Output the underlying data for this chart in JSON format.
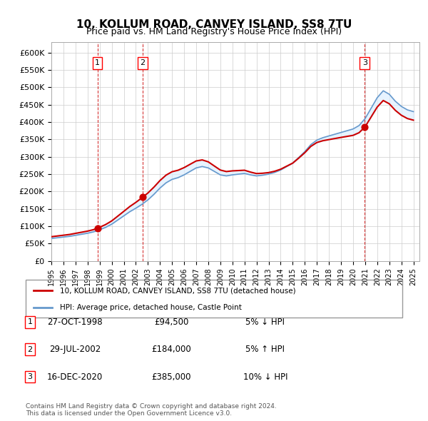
{
  "title": "10, KOLLUM ROAD, CANVEY ISLAND, SS8 7TU",
  "subtitle": "Price paid vs. HM Land Registry's House Price Index (HPI)",
  "ylabel_ticks": [
    "£0",
    "£50K",
    "£100K",
    "£150K",
    "£200K",
    "£250K",
    "£300K",
    "£350K",
    "£400K",
    "£450K",
    "£500K",
    "£550K",
    "£600K"
  ],
  "ytick_values": [
    0,
    50000,
    100000,
    150000,
    200000,
    250000,
    300000,
    350000,
    400000,
    450000,
    500000,
    550000,
    600000
  ],
  "ylim": [
    0,
    630000
  ],
  "xlim_start": 1995.0,
  "xlim_end": 2025.5,
  "sale_dates": [
    1998.82,
    2002.57,
    2020.96
  ],
  "sale_prices": [
    94500,
    184000,
    385000
  ],
  "sale_labels": [
    "1",
    "2",
    "3"
  ],
  "hpi_color": "#6699cc",
  "price_color": "#cc0000",
  "sale_marker_color": "#cc0000",
  "shade_color": "#ddeeff",
  "legend_line1": "10, KOLLUM ROAD, CANVEY ISLAND, SS8 7TU (detached house)",
  "legend_line2": "HPI: Average price, detached house, Castle Point",
  "table_rows": [
    [
      "1",
      "27-OCT-1998",
      "£94,500",
      "5% ↓ HPI"
    ],
    [
      "2",
      "29-JUL-2002",
      "£184,000",
      "5% ↑ HPI"
    ],
    [
      "3",
      "16-DEC-2020",
      "£385,000",
      "10% ↓ HPI"
    ]
  ],
  "footer": "Contains HM Land Registry data © Crown copyright and database right 2024.\nThis data is licensed under the Open Government Licence v3.0.",
  "background_color": "#ffffff",
  "grid_color": "#cccccc"
}
